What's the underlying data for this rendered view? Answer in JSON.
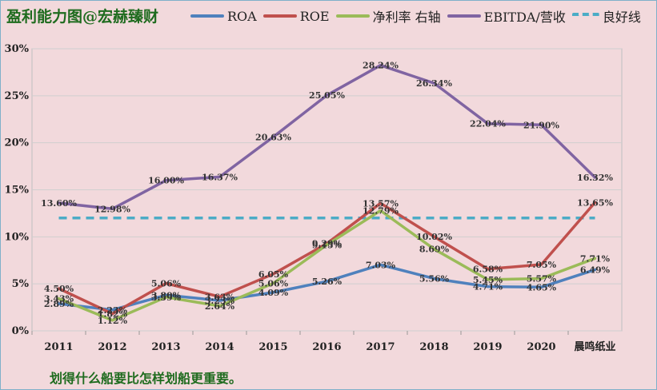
{
  "chart_data": {
    "type": "line",
    "title": "盈利能力图@宏赫臻财",
    "footer": "划得什么船要比怎样划船更重要。",
    "categories": [
      "2011",
      "2012",
      "2013",
      "2014",
      "2015",
      "2016",
      "2017",
      "2018",
      "2019",
      "2020",
      "晨鸣纸业"
    ],
    "ylim": [
      0,
      30
    ],
    "yticks": [
      "0%",
      "5%",
      "10%",
      "15%",
      "20%",
      "25%",
      "30%"
    ],
    "series": [
      {
        "name": "ROA",
        "color": "#4f81bd",
        "values": [
          2.89,
          2.23,
          3.8,
          3.23,
          4.09,
          5.26,
          7.03,
          5.56,
          4.71,
          4.65,
          6.49
        ],
        "labels": [
          "2.89%",
          "2.23%",
          "3.80%",
          "3.23%",
          "4.09%",
          "5.26%",
          "7.03%",
          "5.56%",
          "4.71%",
          "4.65%",
          "6.49%"
        ]
      },
      {
        "name": "ROE",
        "color": "#c0504d",
        "values": [
          4.5,
          1.82,
          5.06,
          3.63,
          6.05,
          9.29,
          13.57,
          10.02,
          6.58,
          7.05,
          13.65
        ],
        "labels": [
          "4.50%",
          "1.82%",
          "5.06%",
          "3.63%",
          "6.05%",
          "9.29%",
          "13.57%",
          "10.02%",
          "6.58%",
          "7.05%",
          "13.65%"
        ]
      },
      {
        "name": "净利率 右轴",
        "color": "#9bbb59",
        "values": [
          3.43,
          1.12,
          3.59,
          2.64,
          5.06,
          9.15,
          12.79,
          8.69,
          5.45,
          5.57,
          7.71
        ],
        "labels": [
          "3.43%",
          "1.12%",
          "3.59%",
          "2.64%",
          "5.06%",
          "9.15%",
          "12.79%",
          "8.69%",
          "5.45%",
          "5.57%",
          "7.71%"
        ]
      },
      {
        "name": "EBITDA/营收",
        "color": "#8064a2",
        "values": [
          13.6,
          12.98,
          16.0,
          16.37,
          20.63,
          25.05,
          28.24,
          26.34,
          22.04,
          21.9,
          16.32
        ],
        "labels": [
          "13.60%",
          "12.98%",
          "16.00%",
          "16.37%",
          "20.63%",
          "25.05%",
          "28.24%",
          "26.34%",
          "22.04%",
          "21.90%",
          "16.32%"
        ]
      }
    ],
    "reference_line": {
      "name": "良好线",
      "color": "#4bacc6",
      "value": 12
    }
  }
}
